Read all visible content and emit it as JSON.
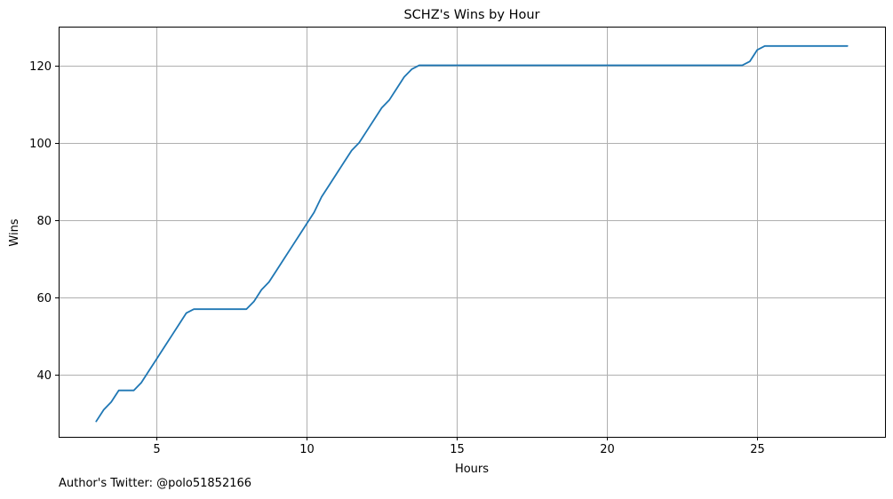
{
  "footer": {
    "credit": "Author's Twitter: @polo51852166"
  },
  "colors": {
    "series": "#1f77b4",
    "grid": "#b0b0b0"
  },
  "chart_data": {
    "type": "line",
    "title": "SCHZ's Wins by Hour",
    "xlabel": "Hours",
    "ylabel": "Wins",
    "xlim": [
      1.75,
      29.25
    ],
    "ylim": [
      24,
      130
    ],
    "xticks": [
      5,
      10,
      15,
      20,
      25
    ],
    "yticks": [
      40,
      60,
      80,
      100,
      120
    ],
    "grid": true,
    "series": [
      {
        "color": "#1f77b4",
        "x": [
          3.0,
          3.25,
          3.5,
          3.75,
          4.0,
          4.25,
          4.5,
          4.75,
          5.0,
          5.25,
          5.5,
          5.75,
          6.0,
          6.25,
          6.5,
          6.75,
          7.0,
          7.25,
          7.5,
          7.75,
          8.0,
          8.25,
          8.5,
          8.75,
          9.0,
          9.25,
          9.5,
          9.75,
          10.0,
          10.25,
          10.5,
          10.75,
          11.0,
          11.25,
          11.5,
          11.75,
          12.0,
          12.25,
          12.5,
          12.75,
          13.0,
          13.25,
          13.5,
          13.75,
          14.0,
          24.5,
          24.75,
          25.0,
          25.25,
          28.0
        ],
        "y": [
          28,
          31,
          33,
          36,
          36,
          36,
          38,
          41,
          44,
          47,
          50,
          53,
          56,
          57,
          57,
          57,
          57,
          57,
          57,
          57,
          57,
          59,
          62,
          64,
          67,
          70,
          73,
          76,
          79,
          82,
          86,
          89,
          92,
          95,
          98,
          100,
          103,
          106,
          109,
          111,
          114,
          117,
          119,
          120,
          120,
          120,
          121,
          124,
          125,
          125
        ]
      }
    ]
  }
}
